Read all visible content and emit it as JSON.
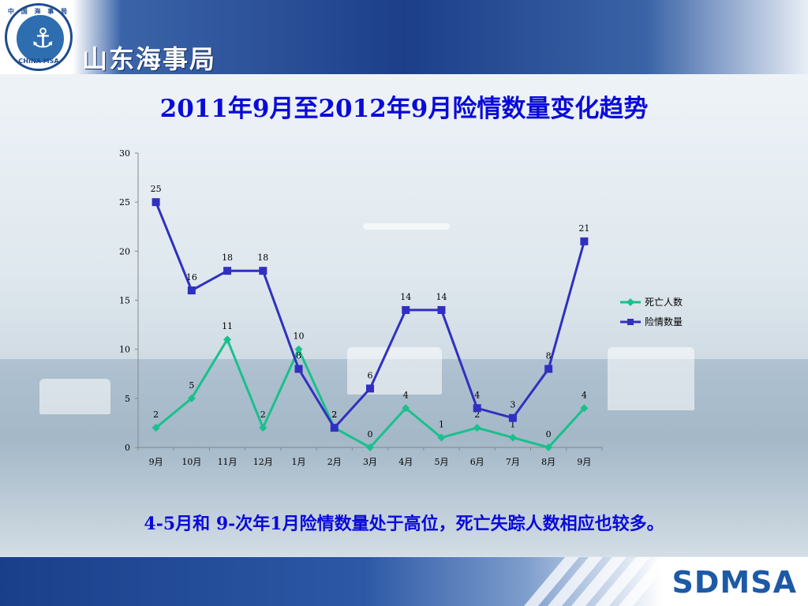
{
  "header": {
    "org_name": "山东海事局",
    "logo_text_top": "中 国 海 事 局",
    "logo_text_bottom": "CHINA MSA"
  },
  "title": "2011年9月至2012年9月险情数量变化趋势",
  "caption": "4-5月和 9-次年1月险情数量处于高位，死亡失踪人数相应也较多。",
  "footer": {
    "brand": "SDMSA"
  },
  "colors": {
    "title": "#0a0ad8",
    "header_blue": "#1d3f8a",
    "deaths_series": "#19c08c",
    "incidents_series": "#3030c0"
  },
  "icons": {
    "logo": "anchor-icon"
  },
  "chart_data": {
    "type": "line",
    "title": "",
    "xlabel": "",
    "ylabel": "",
    "categories": [
      "9月",
      "10月",
      "11月",
      "12月",
      "1月",
      "2月",
      "3月",
      "4月",
      "5月",
      "6月",
      "7月",
      "8月",
      "9月"
    ],
    "ylim": [
      0,
      30
    ],
    "yticks": [
      0,
      5,
      10,
      15,
      20,
      25,
      30
    ],
    "grid": false,
    "legend_position": "right",
    "series": [
      {
        "name": "死亡人数",
        "marker": "diamond",
        "color": "#19c08c",
        "values": [
          2,
          5,
          11,
          2,
          10,
          2,
          0,
          4,
          1,
          2,
          1,
          0,
          4
        ]
      },
      {
        "name": "险情数量",
        "marker": "square",
        "color": "#3030c0",
        "values": [
          25,
          16,
          18,
          18,
          8,
          2,
          6,
          14,
          14,
          4,
          3,
          8,
          21
        ]
      }
    ]
  }
}
